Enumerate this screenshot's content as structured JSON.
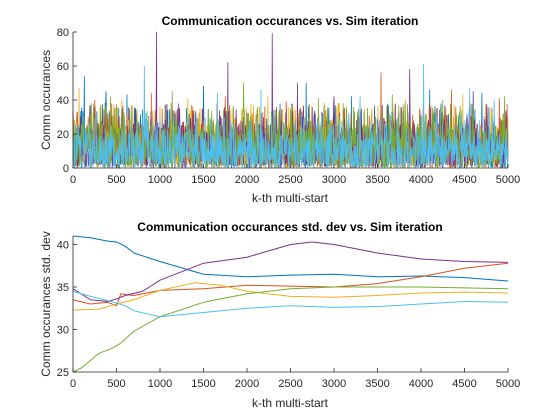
{
  "colors": [
    "#0072BD",
    "#D95319",
    "#EDB120",
    "#7E2F8E",
    "#77AC30",
    "#4DBEEE"
  ],
  "chart_data": [
    {
      "type": "line",
      "title": "Communication occurances vs. Sim iteration",
      "xlabel": "k-th multi-start",
      "ylabel": "Comm occurances",
      "xlim": [
        0,
        5000
      ],
      "ylim": [
        0,
        80
      ],
      "xticks": [
        0,
        500,
        1000,
        1500,
        2000,
        2500,
        3000,
        3500,
        4000,
        4500,
        5000
      ],
      "yticks": [
        0,
        20,
        40,
        60,
        80
      ],
      "grid": false,
      "series": [
        {
          "color": "#0072BD",
          "base": 14,
          "spread": 12,
          "peaks": [
            [
              130,
              54
            ],
            [
              380,
              45
            ],
            [
              620,
              43
            ],
            [
              1500,
              48
            ],
            [
              2680,
              50
            ],
            [
              3200,
              42
            ],
            [
              4100,
              46
            ],
            [
              4700,
              44
            ]
          ]
        },
        {
          "color": "#D95319",
          "base": 14,
          "spread": 12,
          "peaks": [
            [
              250,
              40
            ],
            [
              900,
              44
            ],
            [
              1750,
              42
            ],
            [
              2450,
              39
            ],
            [
              3540,
              56
            ],
            [
              4350,
              46
            ],
            [
              4900,
              41
            ]
          ]
        },
        {
          "color": "#EDB120",
          "base": 14,
          "spread": 12,
          "peaks": [
            [
              70,
              47
            ],
            [
              560,
              40
            ],
            [
              1320,
              41
            ],
            [
              2240,
              42
            ],
            [
              3060,
              38
            ],
            [
              3820,
              40
            ],
            [
              4480,
              43
            ]
          ]
        },
        {
          "color": "#7E2F8E",
          "base": 14,
          "spread": 12,
          "peaks": [
            [
              960,
              80
            ],
            [
              1780,
              62
            ],
            [
              2290,
              79
            ],
            [
              2580,
              50
            ],
            [
              3000,
              42
            ],
            [
              3870,
              58
            ],
            [
              4600,
              45
            ]
          ]
        },
        {
          "color": "#77AC30",
          "base": 14,
          "spread": 12,
          "peaks": [
            [
              430,
              42
            ],
            [
              1140,
              45
            ],
            [
              1960,
              50
            ],
            [
              2820,
              41
            ],
            [
              3670,
              43
            ],
            [
              4250,
              40
            ],
            [
              4960,
              42
            ]
          ]
        },
        {
          "color": "#4DBEEE",
          "base": 10,
          "spread": 10,
          "peaks": [
            [
              820,
              60
            ],
            [
              1660,
              44
            ],
            [
              2160,
              46
            ],
            [
              3300,
              42
            ],
            [
              4030,
              61
            ],
            [
              4560,
              47
            ],
            [
              4840,
              40
            ]
          ]
        }
      ]
    },
    {
      "type": "line",
      "title": "Communication occurances std. dev vs. Sim iteration",
      "xlabel": "k-th multi-start",
      "ylabel": "Comm occurances std. dev",
      "xlim": [
        0,
        5000
      ],
      "ylim": [
        25,
        41
      ],
      "xticks": [
        0,
        500,
        1000,
        1500,
        2000,
        2500,
        3000,
        3500,
        4000,
        4500,
        5000
      ],
      "yticks": [
        25,
        30,
        35,
        40
      ],
      "grid": false,
      "series": [
        {
          "color": "#0072BD",
          "x": [
            0,
            200,
            400,
            500,
            600,
            700,
            1000,
            1500,
            2000,
            2500,
            3000,
            3500,
            4000,
            4500,
            5000
          ],
          "y": [
            41.0,
            40.8,
            40.4,
            40.3,
            39.8,
            39.0,
            38.0,
            36.5,
            36.2,
            36.4,
            36.5,
            36.2,
            36.3,
            36.1,
            35.7
          ]
        },
        {
          "color": "#D95319",
          "x": [
            0,
            200,
            400,
            500,
            550,
            700,
            1000,
            1500,
            2000,
            2500,
            3000,
            3500,
            4000,
            4500,
            5000
          ],
          "y": [
            33.5,
            33.0,
            33.2,
            32.8,
            34.2,
            34.0,
            34.6,
            34.8,
            35.2,
            35.1,
            35.0,
            35.4,
            36.2,
            37.2,
            37.8
          ]
        },
        {
          "color": "#EDB120",
          "x": [
            0,
            300,
            500,
            700,
            1000,
            1400,
            1700,
            2000,
            2500,
            3000,
            3500,
            4000,
            4500,
            5000
          ],
          "y": [
            32.3,
            32.4,
            33.0,
            33.5,
            34.6,
            35.5,
            35.2,
            34.5,
            33.9,
            33.8,
            34.0,
            34.3,
            34.4,
            34.3
          ]
        },
        {
          "color": "#7E2F8E",
          "x": [
            0,
            200,
            400,
            500,
            600,
            800,
            1000,
            1500,
            2000,
            2500,
            2750,
            3000,
            3500,
            4000,
            4500,
            5000
          ],
          "y": [
            34.8,
            33.5,
            33.3,
            33.6,
            34.0,
            34.5,
            35.8,
            37.8,
            38.5,
            40.0,
            40.3,
            40.0,
            39.0,
            38.3,
            38.0,
            37.9
          ]
        },
        {
          "color": "#77AC30",
          "x": [
            0,
            100,
            300,
            450,
            500,
            550,
            700,
            1000,
            1500,
            2000,
            2500,
            3000,
            3500,
            4000,
            4500,
            5000
          ],
          "y": [
            25.0,
            25.5,
            27.2,
            27.8,
            28.1,
            28.4,
            29.8,
            31.5,
            33.2,
            34.2,
            34.8,
            35.0,
            35.0,
            35.0,
            34.9,
            34.8
          ]
        },
        {
          "color": "#4DBEEE",
          "x": [
            0,
            200,
            400,
            600,
            700,
            1000,
            1500,
            2000,
            2500,
            3000,
            3500,
            4000,
            4500,
            5000
          ],
          "y": [
            34.5,
            33.9,
            33.4,
            32.8,
            32.2,
            31.5,
            32.0,
            32.5,
            32.8,
            32.6,
            32.7,
            33.0,
            33.3,
            33.2
          ]
        }
      ]
    }
  ]
}
